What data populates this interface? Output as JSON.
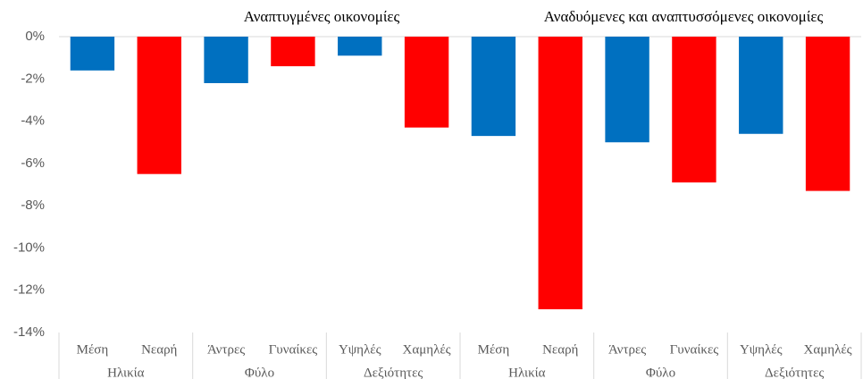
{
  "chart_data": {
    "type": "bar",
    "groups": [
      "Αναπτυγμένες οικονομίες",
      "Αναδυόμενες και αναπτυσσόμενες οικονομίες"
    ],
    "subgroups": [
      "Ηλικία",
      "Φύλο",
      "Δεξιότητες",
      "Ηλικία",
      "Φύλο",
      "Δεξιότητες"
    ],
    "categories": [
      "Μέση",
      "Νεαρή",
      "Άντρες",
      "Γυναίκες",
      "Υψηλές",
      "Χαμηλές",
      "Μέση",
      "Νεαρή",
      "Άντρες",
      "Γυναίκες",
      "Υψηλές",
      "Χαμηλές"
    ],
    "values": [
      -1.6,
      -6.5,
      -2.2,
      -1.4,
      -0.9,
      -4.3,
      -4.7,
      -12.9,
      -5.0,
      -6.9,
      -4.6,
      -7.3
    ],
    "colors": [
      "#0070c0",
      "#ff0000",
      "#0070c0",
      "#ff0000",
      "#0070c0",
      "#ff0000",
      "#0070c0",
      "#ff0000",
      "#0070c0",
      "#ff0000",
      "#0070c0",
      "#ff0000"
    ],
    "ylim": [
      -14,
      0
    ],
    "yticks": [
      {
        "value": 0,
        "label": "0%"
      },
      {
        "value": -2,
        "label": "-2%"
      },
      {
        "value": -4,
        "label": "-4%"
      },
      {
        "value": -6,
        "label": "-6%"
      },
      {
        "value": -8,
        "label": "-8%"
      },
      {
        "value": -10,
        "label": "-10%"
      },
      {
        "value": -12,
        "label": "-12%"
      },
      {
        "value": -14,
        "label": "-14%"
      }
    ],
    "grid": false
  }
}
